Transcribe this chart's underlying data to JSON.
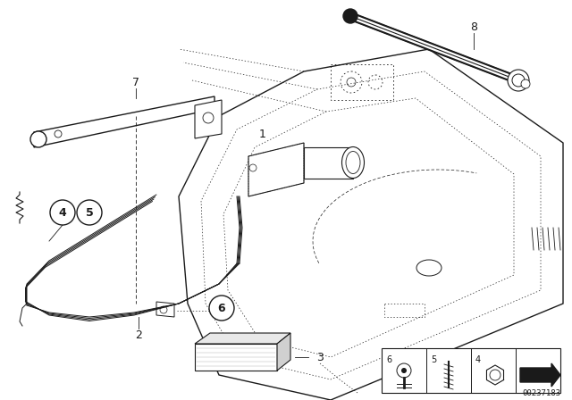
{
  "bg_color": "#ffffff",
  "diagram_id": "00237183",
  "line_color": "#1a1a1a",
  "gray": "#888888",
  "light_gray": "#cccccc"
}
